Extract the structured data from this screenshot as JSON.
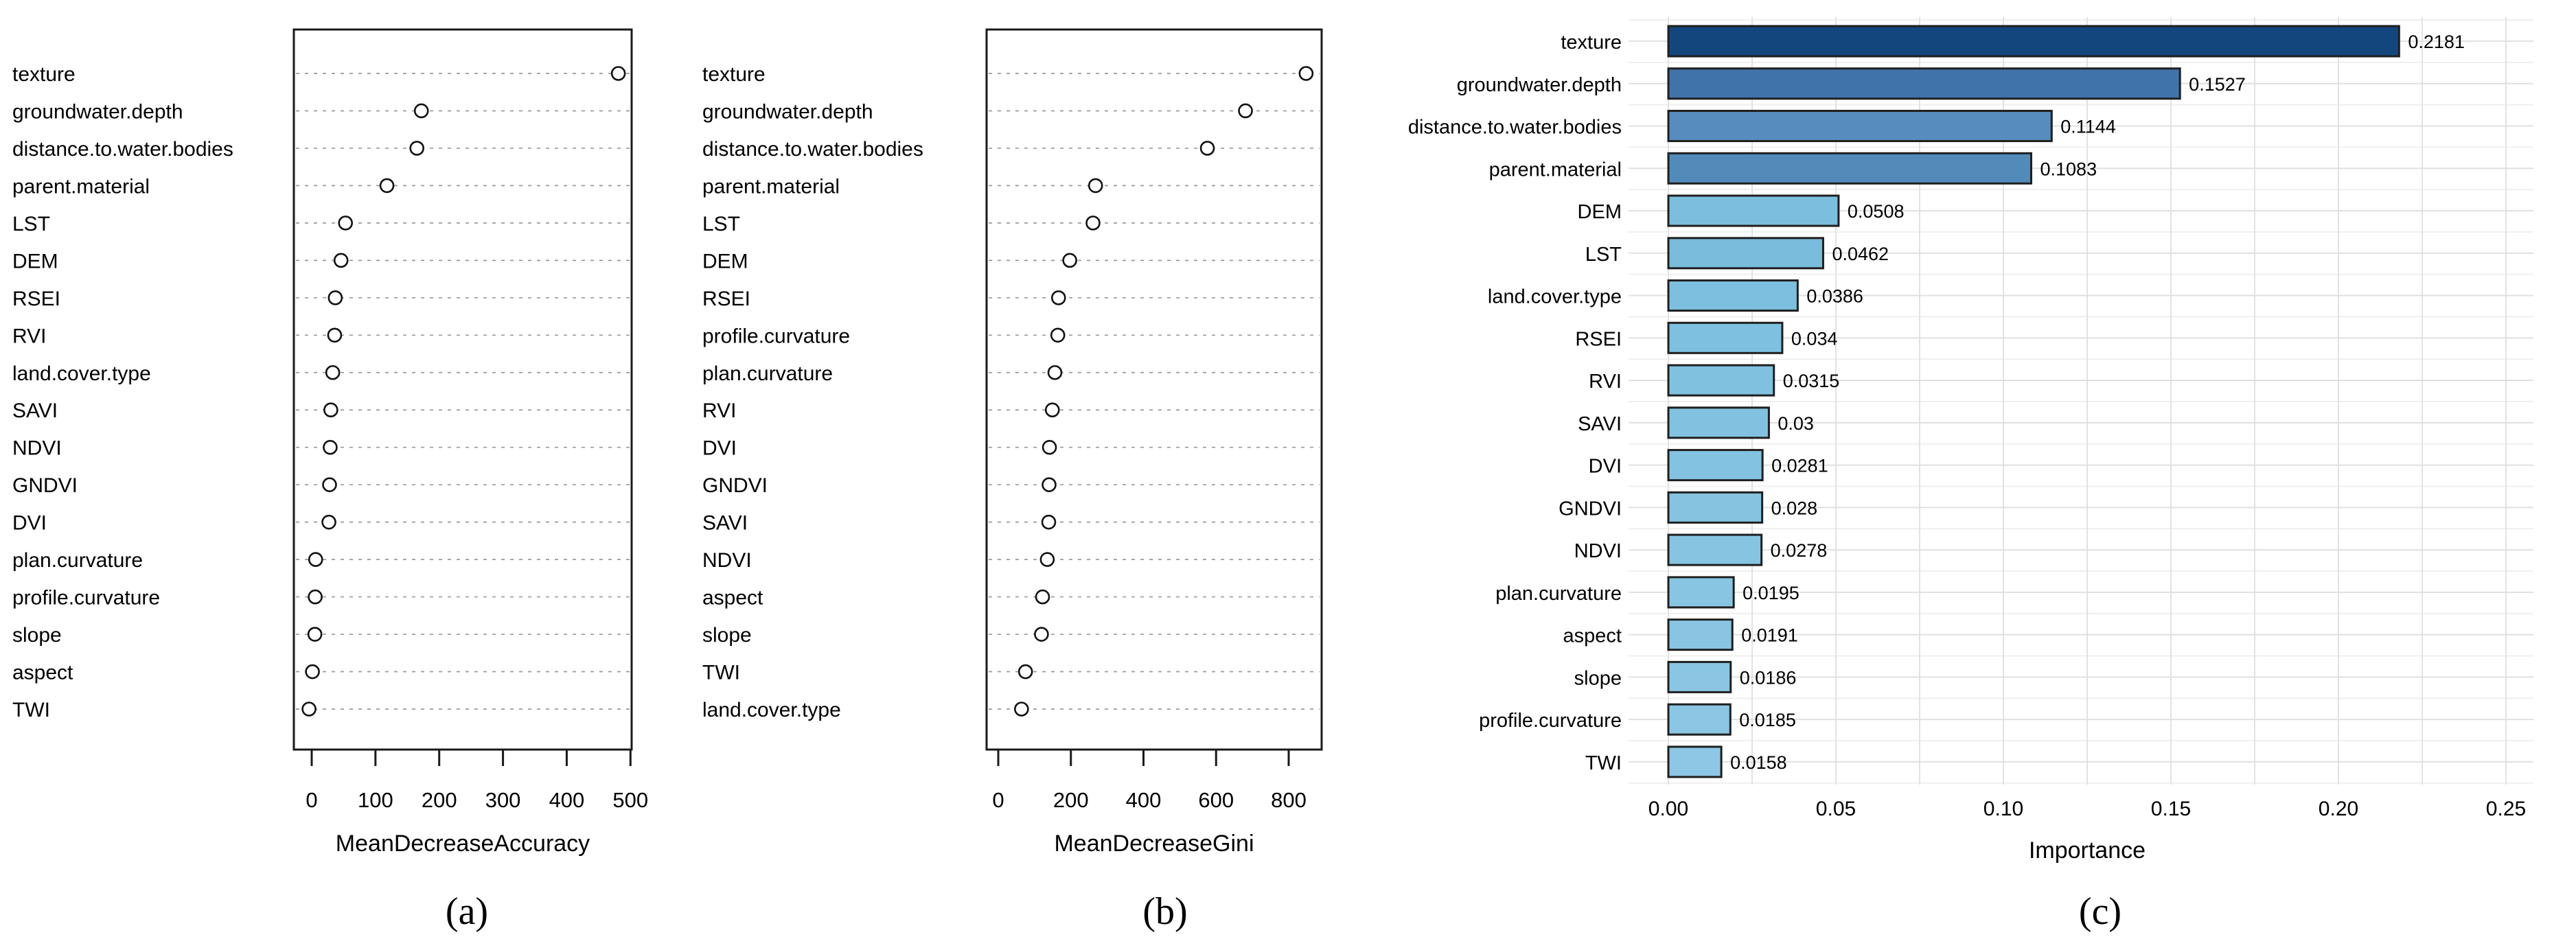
{
  "figure": {
    "description": "Random forest variable importance, three panels",
    "background": "#ffffff"
  },
  "chart_data": [
    {
      "type": "scatter",
      "title": "",
      "xlabel": "MeanDecreaseAccuracy",
      "caption": "(a)",
      "legend": "none",
      "grid": "dashed-horizontal-rows",
      "xticks": [
        0,
        100,
        200,
        300,
        400,
        500
      ],
      "xlim": [
        -28,
        502
      ],
      "categories": [
        "texture",
        "groundwater.depth",
        "distance.to.water.bodies",
        "parent.material",
        "LST",
        "DEM",
        "RSEI",
        "RVI",
        "land.cover.type",
        "SAVI",
        "NDVI",
        "GNDVI",
        "DVI",
        "plan.curvature",
        "profile.curvature",
        "slope",
        "aspect",
        "TWI"
      ],
      "values": [
        481,
        172,
        165,
        118,
        53,
        46,
        37,
        36,
        33,
        30,
        29,
        28,
        27,
        6.2,
        5.5,
        5,
        1.2,
        -4.2
      ],
      "marker": "open-circle",
      "marker_color": "#111111"
    },
    {
      "type": "scatter",
      "title": "",
      "xlabel": "MeanDecreaseGini",
      "caption": "(b)",
      "legend": "none",
      "grid": "dashed-horizontal-rows",
      "xticks": [
        0,
        200,
        400,
        600,
        800
      ],
      "xlim": [
        -32,
        891
      ],
      "categories": [
        "texture",
        "groundwater.depth",
        "distance.to.water.bodies",
        "parent.material",
        "LST",
        "DEM",
        "RSEI",
        "profile.curvature",
        "plan.curvature",
        "RVI",
        "DVI",
        "GNDVI",
        "SAVI",
        "NDVI",
        "aspect",
        "slope",
        "TWI",
        "land.cover.type"
      ],
      "values": [
        848,
        681,
        576,
        268,
        261,
        197,
        166,
        164,
        156,
        149,
        141,
        140,
        139,
        135,
        122,
        119,
        75,
        64
      ],
      "marker": "open-circle",
      "marker_color": "#111111"
    },
    {
      "type": "bar",
      "title": "",
      "xlabel": "Importance",
      "caption": "(c)",
      "legend": "none",
      "grid": "light-gray-major-minor",
      "orientation": "horizontal",
      "xticks": [
        "0.00",
        "0.05",
        "0.10",
        "0.15",
        "0.20",
        "0.25"
      ],
      "xtick_values": [
        0,
        0.05,
        0.1,
        0.15,
        0.2,
        0.25
      ],
      "minor_grid_step": 0.025,
      "xlim": [
        -0.012,
        0.258
      ],
      "categories": [
        "texture",
        "groundwater.depth",
        "distance.to.water.bodies",
        "parent.material",
        "DEM",
        "LST",
        "land.cover.type",
        "RSEI",
        "RVI",
        "SAVI",
        "DVI",
        "GNDVI",
        "NDVI",
        "plan.curvature",
        "aspect",
        "slope",
        "profile.curvature",
        "TWI"
      ],
      "values": [
        0.2181,
        0.1527,
        0.1144,
        0.1083,
        0.0508,
        0.0462,
        0.0386,
        0.034,
        0.0315,
        0.03,
        0.0281,
        0.028,
        0.0278,
        0.0195,
        0.0191,
        0.0186,
        0.0185,
        0.0158
      ],
      "value_labels": [
        "0.2181",
        "0.1527",
        "0.1144",
        "0.1083",
        "0.0508",
        "0.0462",
        "0.0386",
        "0.034",
        "0.0315",
        "0.03",
        "0.0281",
        "0.028",
        "0.0278",
        "0.0195",
        "0.0191",
        "0.0186",
        "0.0185",
        "0.0158"
      ],
      "bar_colors": [
        "#14467e",
        "#4173ab",
        "#568dbe",
        "#528aba",
        "#7bbedd",
        "#79bcdc",
        "#7cbfde",
        "#7ec0df",
        "#80c1e0",
        "#82c2e0",
        "#83c2e1",
        "#85c3e1",
        "#86c4e2",
        "#88c5e3",
        "#89c5e3",
        "#8ac6e4",
        "#8bc6e4",
        "#8dc7e5"
      ],
      "bar_border_color": "#1f1f1f",
      "gridline_color": "#e2e2e2"
    }
  ]
}
